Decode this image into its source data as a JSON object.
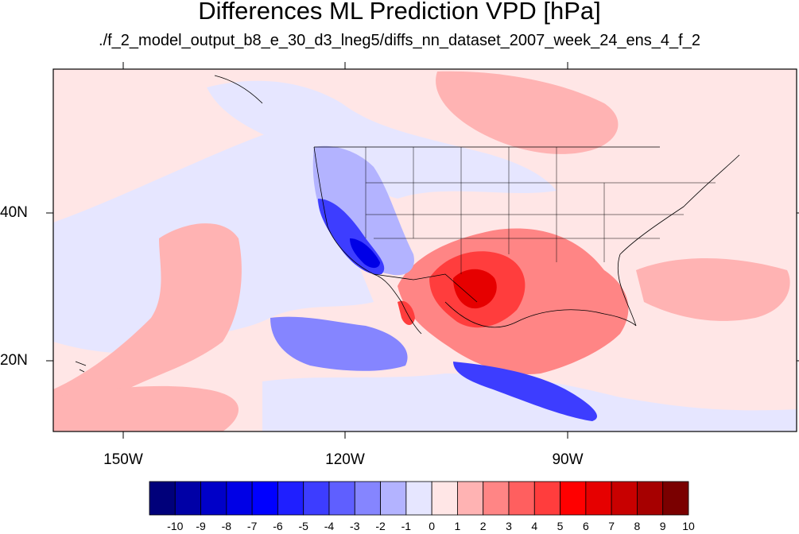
{
  "title": "Differences ML Prediction VPD [hPa]",
  "subtitle": "./f_2_model_output_b8_e_30_d3_lneg5/diffs_nn_dataset_2007_week_24_ens_4_f_2",
  "lon_labels": [
    "150W",
    "120W",
    "90W"
  ],
  "lat_labels": [
    "40N",
    "20N"
  ],
  "colorbar": {
    "labels": [
      "-10",
      "-9",
      "-8",
      "-7",
      "-6",
      "-5",
      "-4",
      "-3",
      "-2",
      "-1",
      "0",
      "1",
      "2",
      "3",
      "4",
      "5",
      "6",
      "7",
      "8",
      "9",
      "10"
    ],
    "colors": [
      "#00007a",
      "#0000a6",
      "#0000c8",
      "#0000e6",
      "#0000ff",
      "#1f1fff",
      "#3d3dff",
      "#5f5fff",
      "#8585ff",
      "#b3b3ff",
      "#e6e6ff",
      "#ffe6e6",
      "#ffb3b3",
      "#ff8585",
      "#ff5f5f",
      "#ff3d3d",
      "#ff0000",
      "#e60000",
      "#c80000",
      "#a60000",
      "#7a0000"
    ]
  },
  "map_colors": {
    "base": "#ffe6e6",
    "light_blue": "#e6e6ff",
    "blue1": "#b3b3ff",
    "blue2": "#8585ff",
    "blue3": "#3d3dff",
    "blue4": "#0000e6",
    "light_red": "#ffb3b3",
    "red1": "#ff8585",
    "red2": "#ff3d3d",
    "red3": "#e60000"
  }
}
